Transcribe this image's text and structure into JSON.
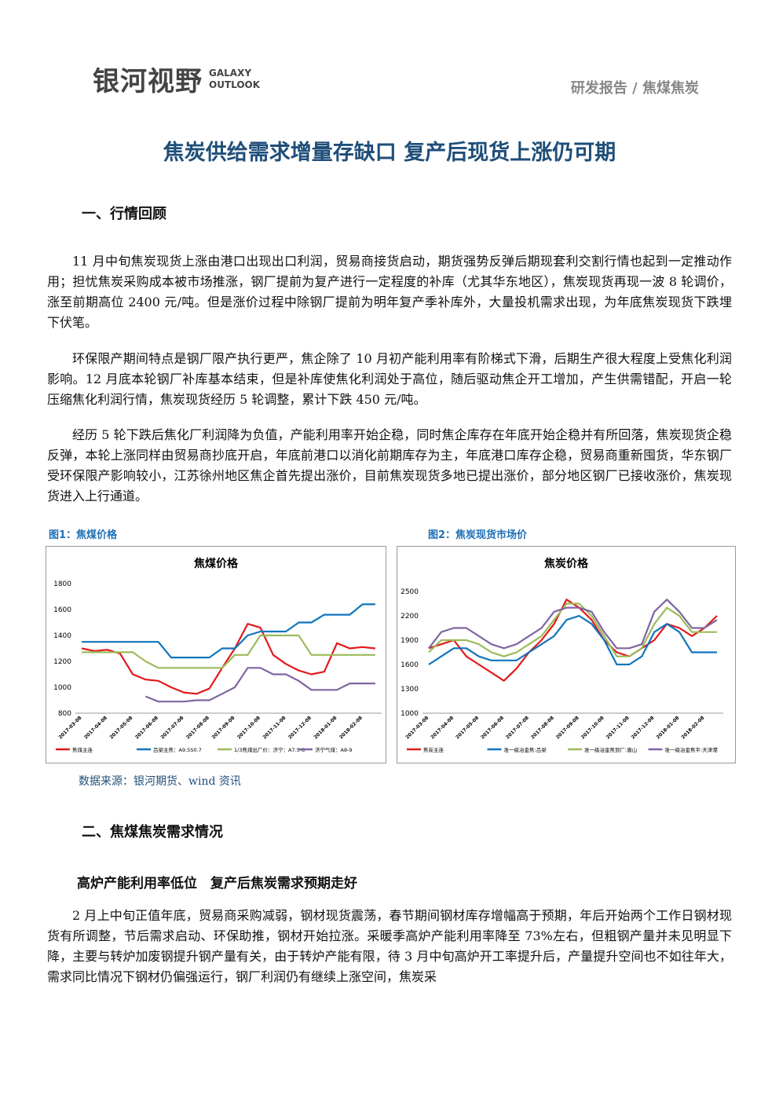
{
  "header": {
    "logo": "银河视野",
    "logo_en_1": "GALAXY",
    "logo_en_2": "OUTLOOK",
    "report_type": "研发报告 / 焦煤焦炭"
  },
  "title": "焦炭供给需求增量存缺口 复产后现货上涨仍可期",
  "section1": {
    "heading": "一、行情回顾",
    "paragraphs": [
      "11 月中旬焦炭现货上涨由港口出现出口利润，贸易商接货启动，期货强势反弹后期现套利交割行情也起到一定推动作用；担忧焦炭采购成本被市场推涨，钢厂提前为复产进行一定程度的补库（尤其华东地区），焦炭现货再现一波 8 轮调价，涨至前期高位 2400 元/吨。但是涨价过程中除钢厂提前为明年复产季补库外，大量投机需求出现，为年底焦炭现货下跌埋下伏笔。",
      "环保限产期间特点是钢厂限产执行更严，焦企除了 10 月初产能利用率有阶梯式下滑，后期生产很大程度上受焦化利润影响。12 月底本轮钢厂补库基本结束，但是补库使焦化利润处于高位，随后驱动焦企开工增加，产生供需错配，开启一轮压缩焦化利润行情，焦炭现货经历 5 轮调整，累计下跌 450 元/吨。",
      "经历 5 轮下跌后焦化厂利润降为负值，产能利用率开始企稳，同时焦企库存在年底开始企稳并有所回落，焦炭现货企稳反弹，本轮上涨同样由贸易商抄底开启，年底前港口以消化前期库存为主，年底港口库存企稳，贸易商重新囤货，华东钢厂受环保限产影响较小，江苏徐州地区焦企首先提出涨价，目前焦炭现货多地已提出涨价，部分地区钢厂已接收涨价，焦炭现货进入上行通道。"
    ]
  },
  "figures": [
    {
      "caption": "图1：焦煤价格",
      "chart_data": {
        "type": "line",
        "title": "焦煤价格",
        "categories": [
          "2017-03-08",
          null,
          "2017-04-08",
          null,
          "2017-05-08",
          null,
          "2017-06-08",
          null,
          "2017-07-08",
          null,
          "2017-08-08",
          null,
          "2017-09-08",
          null,
          "2017-10-08",
          null,
          "2017-11-08",
          null,
          "2017-12-08",
          null,
          "2018-01-08",
          null,
          "2018-02-08",
          null
        ],
        "ylim": [
          800,
          1800
        ],
        "yticks": [
          800,
          1000,
          1200,
          1400,
          1600,
          1800
        ],
        "grid": false,
        "series": [
          {
            "name": "焦煤主连",
            "color": "#e3191c",
            "values": [
              1300,
              1280,
              1290,
              1260,
              1100,
              1060,
              1050,
              1000,
              960,
              950,
              990,
              1150,
              1300,
              1490,
              1460,
              1250,
              1180,
              1130,
              1100,
              1120,
              1340,
              1300,
              1310,
              1300
            ]
          },
          {
            "name": "吕梁主焦：A9.5S0.7",
            "color": "#0f75bc",
            "values": [
              1350,
              1350,
              1350,
              1350,
              1350,
              1350,
              1350,
              1230,
              1230,
              1230,
              1230,
              1300,
              1300,
              1400,
              1430,
              1430,
              1430,
              1500,
              1500,
              1560,
              1560,
              1560,
              1640,
              1640
            ]
          },
          {
            "name": "1/3焦煤出厂价：济宁：A7.5-8",
            "color": "#9bbb59",
            "values": [
              1270,
              1270,
              1270,
              1270,
              1270,
              1200,
              1150,
              1150,
              1150,
              1150,
              1150,
              1150,
              1250,
              1250,
              1400,
              1400,
              1400,
              1400,
              1250,
              1250,
              1250,
              1250,
              1250,
              1250
            ]
          },
          {
            "name": "济宁气煤：A8-9",
            "color": "#8064a2",
            "values": [
              null,
              null,
              null,
              null,
              null,
              930,
              890,
              890,
              890,
              900,
              900,
              950,
              1000,
              1150,
              1150,
              1100,
              1100,
              1050,
              980,
              980,
              980,
              1030,
              1030,
              1030
            ]
          }
        ]
      }
    },
    {
      "caption": "图2：焦炭现货市场价",
      "chart_data": {
        "type": "line",
        "title": "焦炭价格",
        "categories": [
          "2017-03-08",
          null,
          "2017-04-08",
          null,
          "2017-05-08",
          null,
          "2017-06-08",
          null,
          "2017-07-08",
          null,
          "2017-08-08",
          null,
          "2017-09-08",
          null,
          "2017-10-08",
          null,
          "2017-11-08",
          null,
          "2017-12-08",
          null,
          "2018-01-08",
          null,
          "2018-02-08",
          null
        ],
        "ylim": [
          1000,
          2500
        ],
        "yticks": [
          1000,
          1300,
          1600,
          1900,
          2200,
          2500
        ],
        "grid": false,
        "series": [
          {
            "name": "焦炭主连",
            "color": "#e3191c",
            "values": [
              1800,
              1850,
              1900,
              1700,
              1600,
              1500,
              1400,
              1550,
              1750,
              1900,
              2100,
              2400,
              2300,
              2150,
              1900,
              1750,
              1700,
              1800,
              1900,
              2100,
              2050,
              1950,
              2050,
              2200
            ]
          },
          {
            "name": "准一级冶金焦:吕梁",
            "color": "#0f75bc",
            "values": [
              1600,
              1700,
              1800,
              1800,
              1700,
              1650,
              1650,
              1650,
              1750,
              1850,
              1950,
              2150,
              2200,
              2100,
              1900,
              1600,
              1600,
              1700,
              2000,
              2100,
              2000,
              1750,
              1750,
              1750
            ]
          },
          {
            "name": "准一级冶金焦到厂:唐山",
            "color": "#9bbb59",
            "values": [
              1750,
              1900,
              1900,
              1900,
              1850,
              1750,
              1700,
              1750,
              1850,
              1950,
              2150,
              2350,
              2350,
              2200,
              1950,
              1700,
              1700,
              1800,
              2100,
              2300,
              2200,
              2000,
              2000,
              2000
            ]
          },
          {
            "name": "准一级冶金焦平:天津港",
            "color": "#8064a2",
            "values": [
              1800,
              2000,
              2050,
              2050,
              1950,
              1850,
              1800,
              1850,
              1950,
              2050,
              2250,
              2300,
              2300,
              2250,
              2000,
              1800,
              1800,
              1850,
              2250,
              2400,
              2250,
              2050,
              2050,
              2150
            ]
          }
        ]
      }
    }
  ],
  "source": "数据来源：银河期货、wind 资讯",
  "section2": {
    "heading": "二、焦煤焦炭需求情况",
    "subheading": "高炉产能利用率低位　复产后焦炭需求预期走好",
    "paragraphs": [
      "2 月上中旬正值年底，贸易商采购减弱，钢材现货震荡，春节期间钢材库存增幅高于预期，年后开始两个工作日钢材现货有所调整，节后需求启动、环保助推，钢材开始拉涨。采暖季高炉产能利用率降至 73%左右，但粗钢产量并未见明显下降，主要与转炉加废钢提升钢产量有关，由于转炉产能有限，待 3 月中旬高炉开工率提升后，产量提升空间也不如往年大，需求同比情况下钢材仍偏强运行，钢厂利润仍有继续上涨空间，焦炭采"
    ]
  }
}
